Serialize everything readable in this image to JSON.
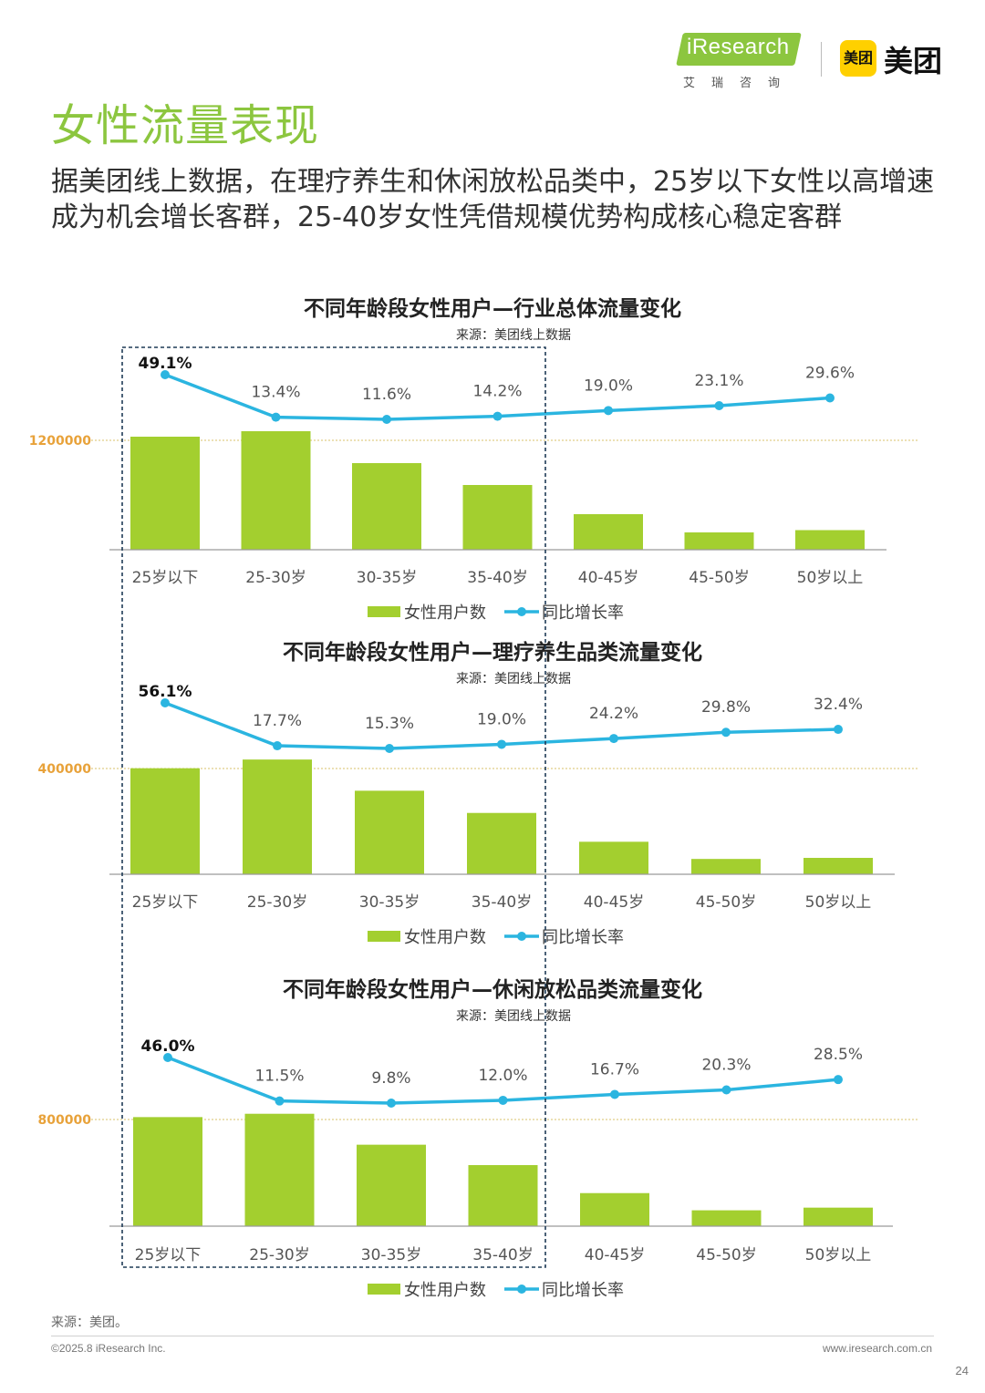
{
  "header": {
    "logo_iresearch": "iResearch",
    "logo_iresearch_cn": "艾瑞咨询",
    "logo_meituan_badge": "美团",
    "logo_meituan": "美团"
  },
  "page_title": "女性流量表现",
  "subtitle": "据美团线上数据，在理疗养生和休闲放松品类中，25岁以下女性以高增速成为机会增长客群，25-40岁女性凭借规模优势构成核心稳定客群",
  "colors": {
    "bar": "#a3cf2f",
    "line": "#2bb5e0",
    "title_green": "#8cc63f",
    "ref_line": "#d9c26a",
    "ref_label": "#e8a23a",
    "highlight_box": "#1f3b57"
  },
  "chart_data": [
    {
      "type": "bar",
      "title": "不同年龄段女性用户—行业总体流量变化",
      "source": "来源：美团线上数据",
      "categories": [
        "25岁以下",
        "25-30岁",
        "30-35岁",
        "35-40岁",
        "40-45岁",
        "45-50岁",
        "50岁以上"
      ],
      "series": [
        {
          "name": "女性用户数",
          "kind": "bar",
          "values": [
            1240000,
            1300000,
            950000,
            710000,
            390000,
            190000,
            215000
          ]
        },
        {
          "name": "同比增长率",
          "kind": "line",
          "values": [
            49.1,
            13.4,
            11.6,
            14.2,
            19.0,
            23.1,
            29.6
          ],
          "labels": [
            "49.1%",
            "13.4%",
            "11.6%",
            "14.2%",
            "19.0%",
            "23.1%",
            "29.6%"
          ]
        }
      ],
      "reference_line": {
        "value": 1200000,
        "label": "1200000"
      },
      "legend": "bottom"
    },
    {
      "type": "bar",
      "title": "不同年龄段女性用户—理疗养生品类流量变化",
      "source": "来源：美团线上数据",
      "categories": [
        "25岁以下",
        "25-30岁",
        "30-35岁",
        "35-40岁",
        "40-45岁",
        "45-50岁",
        "50岁以上"
      ],
      "series": [
        {
          "name": "女性用户数",
          "kind": "bar",
          "values": [
            401000,
            434000,
            316000,
            232000,
            123000,
            58000,
            62000
          ]
        },
        {
          "name": "同比增长率",
          "kind": "line",
          "values": [
            56.1,
            17.7,
            15.3,
            19.0,
            24.2,
            29.8,
            32.4
          ],
          "labels": [
            "56.1%",
            "17.7%",
            "15.3%",
            "19.0%",
            "24.2%",
            "29.8%",
            "32.4%"
          ]
        }
      ],
      "reference_line": {
        "value": 400000,
        "label": "400000"
      },
      "legend": "bottom"
    },
    {
      "type": "bar",
      "title": "不同年龄段女性用户—休闲放松品类流量变化",
      "source": "来源：美团线上数据",
      "categories": [
        "25岁以下",
        "25-30岁",
        "30-35岁",
        "35-40岁",
        "40-45岁",
        "45-50岁",
        "50岁以上"
      ],
      "series": [
        {
          "name": "女性用户数",
          "kind": "bar",
          "values": [
            818000,
            843000,
            611000,
            458000,
            248000,
            119000,
            139000
          ]
        },
        {
          "name": "同比增长率",
          "kind": "line",
          "values": [
            46.0,
            11.5,
            9.8,
            12.0,
            16.7,
            20.3,
            28.5
          ],
          "labels": [
            "46.0%",
            "11.5%",
            "9.8%",
            "12.0%",
            "16.7%",
            "20.3%",
            "28.5%"
          ]
        }
      ],
      "reference_line": {
        "value": 800000,
        "label": "800000"
      },
      "legend": "bottom"
    }
  ],
  "footer": {
    "source": "来源：美团。",
    "copyright": "©2025.8 iResearch Inc.",
    "url": "www.iresearch.com.cn",
    "page_number": "24"
  }
}
